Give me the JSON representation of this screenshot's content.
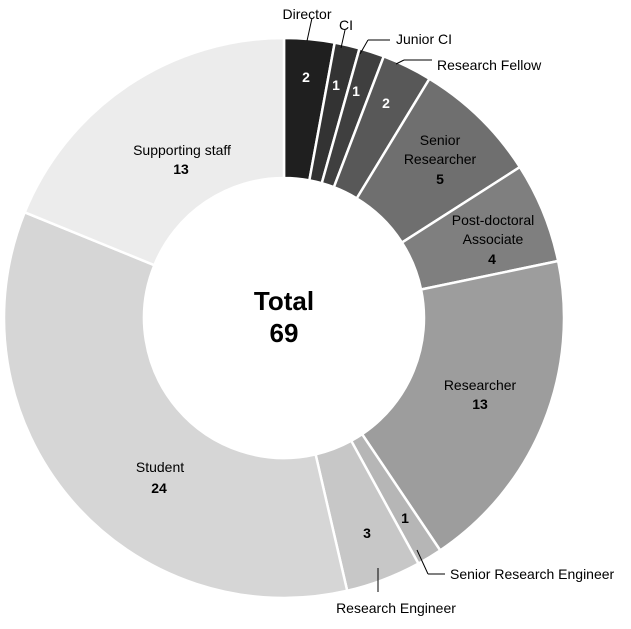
{
  "chart_data": {
    "type": "pie",
    "variant": "donut",
    "total_label": "Total",
    "total_value": 69,
    "categories": [
      "Director",
      "CI",
      "Junior CI",
      "Research Fellow",
      "Senior Researcher",
      "Post-doctoral Associate",
      "Researcher",
      "Senior Research Engineer",
      "Research Engineer",
      "Student",
      "Supporting staff"
    ],
    "values": [
      2,
      1,
      1,
      2,
      5,
      4,
      13,
      1,
      3,
      24,
      13
    ],
    "colors": [
      "#1f1f1f",
      "#333333",
      "#3f3f3f",
      "#585858",
      "#6f6f6f",
      "#7f7f7f",
      "#9d9d9d",
      "#b6b6b6",
      "#c7c7c7",
      "#d6d6d6",
      "#ececec"
    ],
    "label_colors": [
      "#ffffff",
      "#ffffff",
      "#ffffff",
      "#ffffff",
      "#000000",
      "#000000",
      "#000000",
      "#000000",
      "#000000",
      "#000000",
      "#000000"
    ],
    "start_angle_deg": 0,
    "direction": "clockwise",
    "legend": "none"
  }
}
